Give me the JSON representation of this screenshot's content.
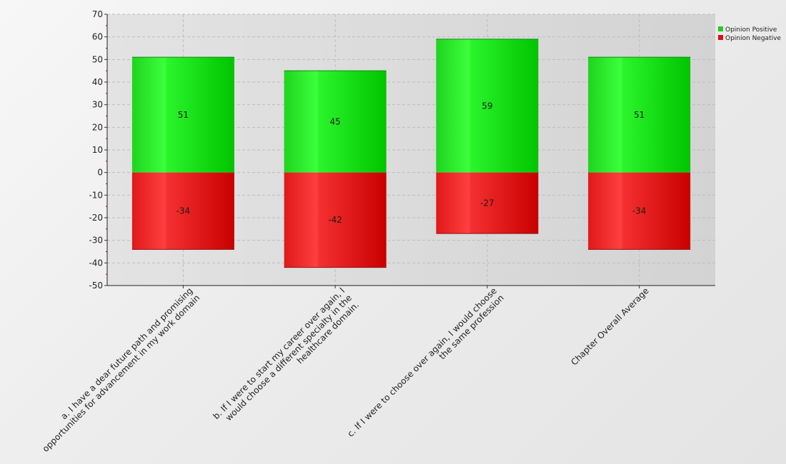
{
  "chart_data": {
    "type": "bar",
    "stacked": true,
    "categories": [
      [
        "a. I have a dear future path and promising",
        "opportunities for advancement in my work domain"
      ],
      [
        "b. If I were to start my career over again, I",
        "would choose a different specialty in the",
        "healthcare domain."
      ],
      [
        "c. If I were to choose over again, I would choose",
        "the same profession"
      ],
      [
        "Chapter Overall Average"
      ]
    ],
    "series": [
      {
        "name": "Opinion Positive",
        "values": [
          51,
          45,
          59,
          51
        ],
        "color": "#22cc22"
      },
      {
        "name": "Opinion Negative",
        "values": [
          -34,
          -42,
          -27,
          -34
        ],
        "color": "#dd1111"
      }
    ],
    "ylim": [
      -50,
      70
    ],
    "yticks": [
      70,
      60,
      50,
      40,
      30,
      20,
      10,
      0,
      -10,
      -20,
      -30,
      -40,
      -50
    ],
    "grid": true,
    "legend_position": "top-right",
    "title": "",
    "xlabel": "",
    "ylabel": ""
  }
}
